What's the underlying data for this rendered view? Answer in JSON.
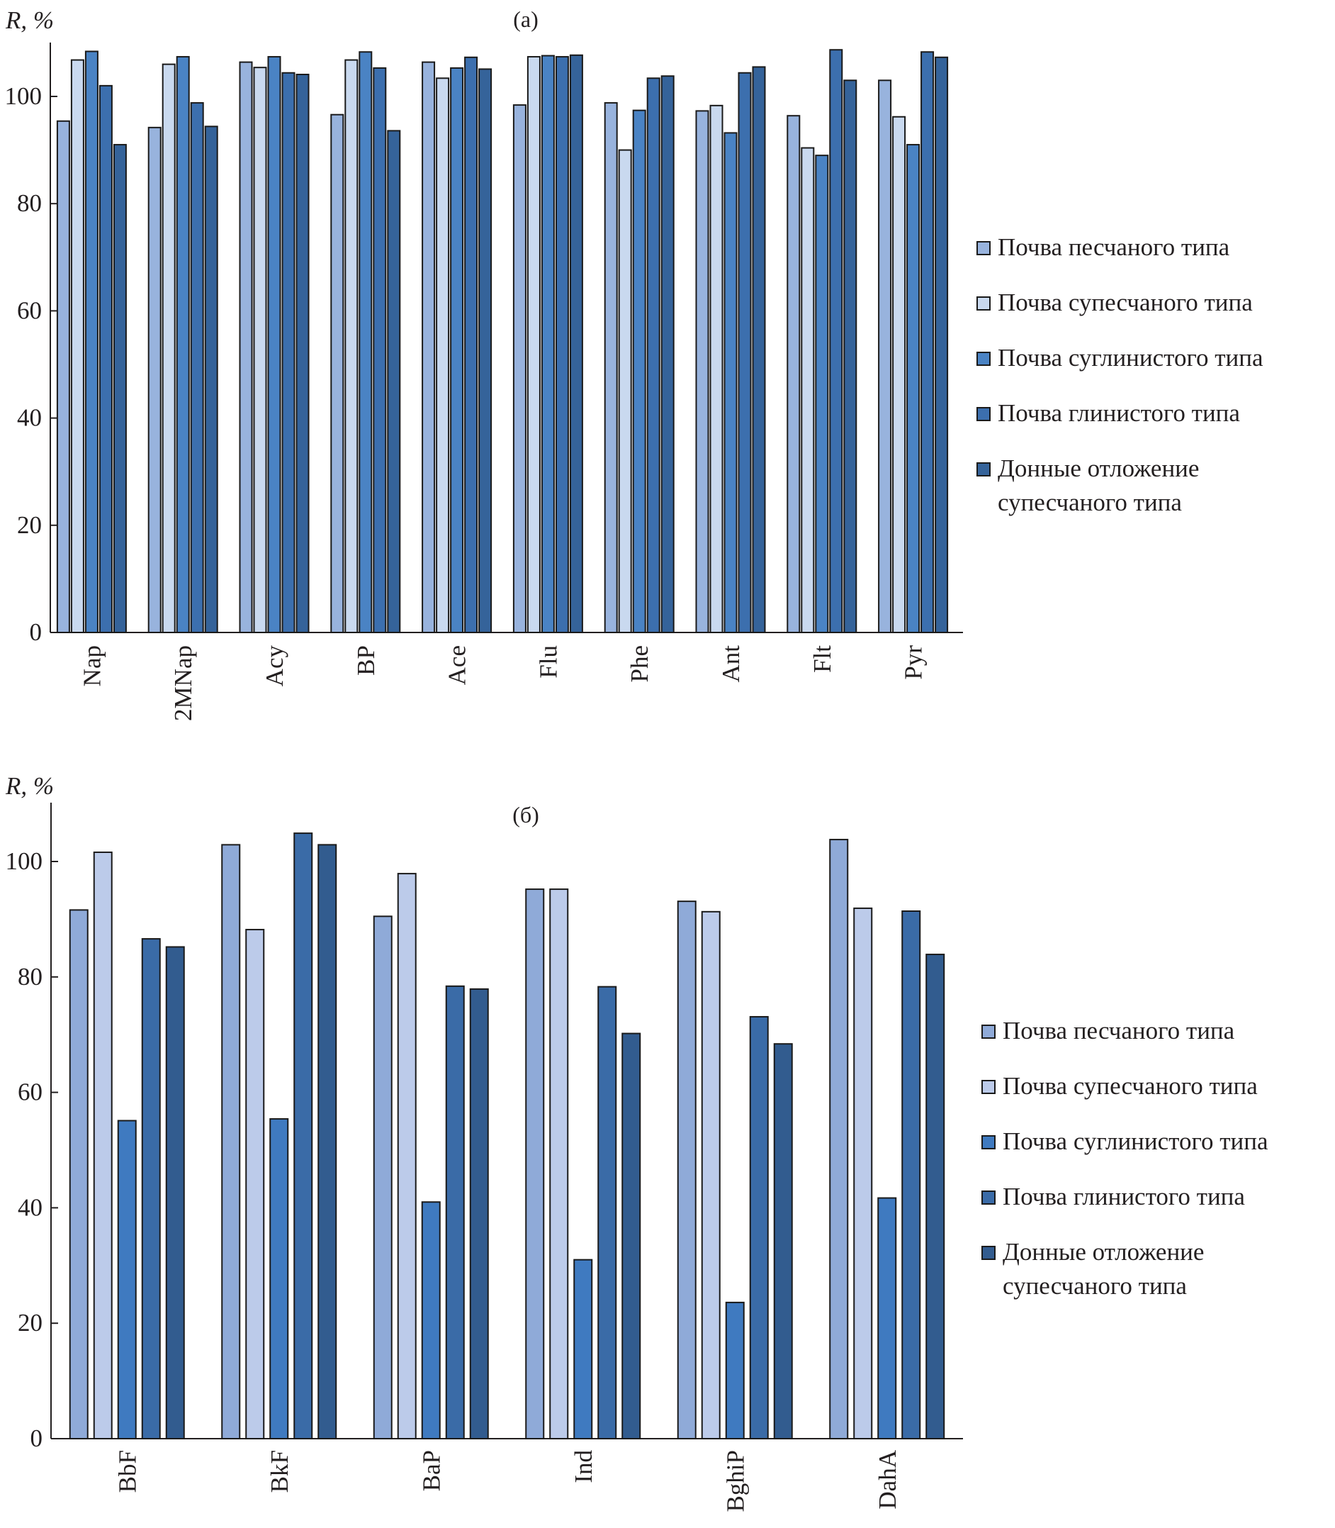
{
  "colors": [
    "#98b3dd",
    "#c9d9ef",
    "#4a83c4",
    "#3c6fae",
    "#35639a"
  ],
  "chart_data": [
    {
      "type": "bar",
      "title": "(a)",
      "ylabel": "R, %",
      "xlabel": "",
      "ylim": [
        0,
        110
      ],
      "yticks": [
        0,
        20,
        40,
        60,
        80,
        100
      ],
      "grid": false,
      "legend_position": "right",
      "categories": [
        "Nap",
        "2MNap",
        "Acy",
        "BP",
        "Ace",
        "Flu",
        "Phe",
        "Ant",
        "Flt",
        "Pyr"
      ],
      "series": [
        {
          "name": "Почва песчаного типа",
          "values": [
            95.4,
            94.2,
            106.4,
            96.6,
            106.4,
            98.4,
            98.8,
            97.3,
            96.4,
            103.0
          ]
        },
        {
          "name": "Почва супесчаного типа",
          "values": [
            106.8,
            106.0,
            105.4,
            106.8,
            103.4,
            107.4,
            90.0,
            98.3,
            90.4,
            96.2
          ]
        },
        {
          "name": "Почва суглинистого типа",
          "values": [
            108.4,
            107.4,
            107.4,
            108.3,
            105.3,
            107.6,
            97.4,
            93.2,
            89.0,
            91.0
          ]
        },
        {
          "name": "Почва глинистого типа",
          "values": [
            102.0,
            98.8,
            104.4,
            105.3,
            107.3,
            107.4,
            103.4,
            104.4,
            108.7,
            108.3
          ]
        },
        {
          "name": "Донные отложение супесчаного типа",
          "values": [
            91.0,
            94.4,
            104.1,
            93.6,
            105.1,
            107.7,
            103.8,
            105.5,
            103.0,
            107.3
          ]
        }
      ]
    },
    {
      "type": "bar",
      "title": "(б)",
      "ylabel": "R, %",
      "xlabel": "",
      "ylim": [
        0,
        110
      ],
      "yticks": [
        0,
        20,
        40,
        60,
        80,
        100
      ],
      "grid": false,
      "legend_position": "right",
      "categories": [
        "BbF",
        "BkF",
        "BaP",
        "Ind",
        "BghiP",
        "DahA"
      ],
      "series": [
        {
          "name": "Почва песчаного типа",
          "values": [
            91.6,
            102.9,
            90.5,
            95.2,
            93.1,
            103.8
          ]
        },
        {
          "name": "Почва супесчаного типа",
          "values": [
            101.6,
            88.2,
            97.9,
            95.2,
            91.3,
            91.9
          ]
        },
        {
          "name": "Почва суглинистого типа",
          "values": [
            55.1,
            55.4,
            41.0,
            31.0,
            23.6,
            41.7
          ]
        },
        {
          "name": "Почва глинистого типа",
          "values": [
            86.6,
            104.9,
            78.4,
            78.3,
            73.1,
            91.4
          ]
        },
        {
          "name": "Донные отложение супесчаного типа",
          "values": [
            85.2,
            102.9,
            77.9,
            70.2,
            68.4,
            83.9
          ]
        }
      ]
    }
  ],
  "legend": {
    "items": [
      {
        "label": "Почва песчаного типа"
      },
      {
        "label": "Почва супесчаного типа"
      },
      {
        "label": "Почва суглинистого типа"
      },
      {
        "label": "Почва глинистого типа"
      },
      {
        "label": "Донные отложение супесчаного типа"
      }
    ]
  }
}
